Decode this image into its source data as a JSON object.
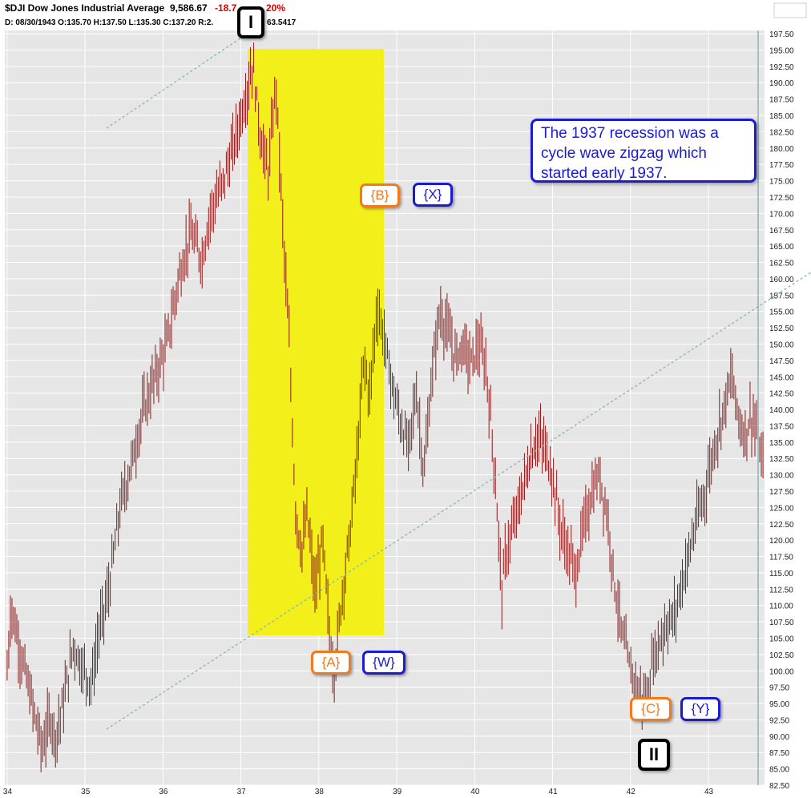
{
  "header": {
    "title": "$DJI Dow Jones Industrial Average",
    "last": "9,586.67",
    "change": "-18.7",
    "change_pct": "20%",
    "bar_info": "D: 08/30/1943 O:135.70 H:137.50 L:135.30 C:137.20 R:2.",
    "extra": "63.5417"
  },
  "colors": {
    "bars": "#8b1a1a",
    "highlight": "#f2ef1a",
    "trendline": "#8fbcb4",
    "grid": "#ffffff",
    "background": "#e6e6e6",
    "orange": "#f07a1e",
    "blue": "#1b1bd6"
  },
  "annotation": {
    "text": "The 1937 recession was a cycle wave zigzag which started early 1937."
  },
  "wave_labels": {
    "I": "I",
    "II": "II",
    "A": "{A}",
    "W": "{W}",
    "B": "{B}",
    "X": "{X}",
    "C": "{C}",
    "Y": "{Y}"
  },
  "chart_data": {
    "type": "line",
    "title": "$DJI Dow Jones Industrial Average",
    "xlabel": "",
    "ylabel": "",
    "xlim": [
      1933.97,
      1943.72
    ],
    "ylim": [
      82.5,
      198
    ],
    "x_ticks": [
      "34",
      "35",
      "36",
      "37",
      "38",
      "39",
      "40",
      "41",
      "42",
      "43"
    ],
    "y_ticks": [
      82.5,
      85,
      87.5,
      90,
      92.5,
      95,
      97.5,
      100,
      102.5,
      105,
      107.5,
      110,
      112.5,
      115,
      117.5,
      120,
      122.5,
      125,
      127.5,
      130,
      132.5,
      135,
      137.5,
      140,
      142.5,
      145,
      147.5,
      150,
      152.5,
      155,
      157.5,
      160,
      162.5,
      165,
      167.5,
      170,
      172.5,
      175,
      177.5,
      180,
      182.5,
      185,
      187.5,
      190,
      192.5,
      195,
      197.5
    ],
    "grid": true,
    "series": [
      {
        "x": [
          1934.0,
          1934.05,
          1934.15,
          1934.3,
          1934.45,
          1934.55,
          1934.62,
          1934.72,
          1934.85,
          1934.95,
          1935.08,
          1935.18,
          1935.3,
          1935.45,
          1935.6,
          1935.75,
          1935.9,
          1936.05,
          1936.2,
          1936.35,
          1936.5,
          1936.6,
          1936.75,
          1936.9,
          1937.0,
          1937.1,
          1937.15,
          1937.25,
          1937.35,
          1937.45,
          1937.55,
          1937.62,
          1937.7,
          1937.78,
          1937.85,
          1937.95,
          1938.05,
          1938.15,
          1938.2,
          1938.3,
          1938.4,
          1938.5,
          1938.58,
          1938.65,
          1938.75,
          1938.85,
          1938.95,
          1939.05,
          1939.15,
          1939.25,
          1939.35,
          1939.45,
          1939.55,
          1939.65,
          1939.75,
          1939.85,
          1939.95,
          1940.05,
          1940.15,
          1940.25,
          1940.35,
          1940.4,
          1940.5,
          1940.6,
          1940.7,
          1940.8,
          1940.9,
          1941.0,
          1941.1,
          1941.2,
          1941.3,
          1941.4,
          1941.5,
          1941.6,
          1941.7,
          1941.8,
          1941.9,
          1942.0,
          1942.1,
          1942.2,
          1942.28,
          1942.35,
          1942.45,
          1942.55,
          1942.65,
          1942.75,
          1942.85,
          1942.95,
          1943.05,
          1943.15,
          1943.25,
          1943.3,
          1943.35,
          1943.45,
          1943.55,
          1943.62,
          1943.7
        ],
        "values": [
          100,
          110,
          104,
          96,
          88,
          93,
          90,
          95,
          104,
          101,
          98,
          106,
          112,
          125,
          132,
          140,
          145,
          150,
          160,
          167,
          163,
          170,
          174,
          180,
          185,
          190,
          193,
          182,
          176,
          190,
          165,
          150,
          125,
          118,
          124,
          112,
          120,
          103,
          100,
          112,
          121,
          134,
          148,
          142,
          156,
          150,
          143,
          138,
          134,
          143,
          130,
          145,
          155,
          152,
          148,
          150,
          147,
          150,
          146,
          132,
          112,
          118,
          122,
          127,
          132,
          136,
          134,
          130,
          122,
          118,
          115,
          122,
          127,
          130,
          124,
          113,
          105,
          100,
          97,
          95,
          101,
          104,
          107,
          108,
          113,
          118,
          123,
          127,
          133,
          138,
          143,
          145,
          141,
          136,
          139,
          137,
          131
        ]
      }
    ],
    "annotations": [
      "I",
      "II",
      "{A}",
      "{W}",
      "{B}",
      "{X}",
      "{C}",
      "{Y}",
      "The 1937 recession was a cycle wave zigzag which started early 1937."
    ]
  }
}
